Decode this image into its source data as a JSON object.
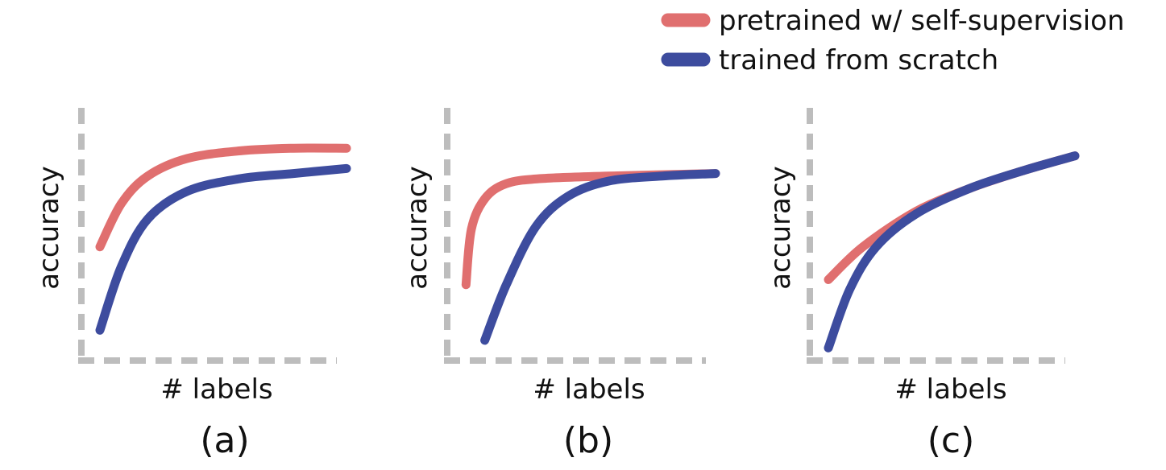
{
  "legend": {
    "items": [
      {
        "label": "pretrained w/ self-supervision",
        "color": "#E06F6F"
      },
      {
        "label": "trained from scratch",
        "color": "#3D4C9E"
      }
    ]
  },
  "axis_color": "#BDBDBD",
  "chart_data": [
    {
      "type": "line",
      "panel_label": "(a)",
      "xlabel": "# labels",
      "ylabel": "accuracy",
      "xlim": [
        0,
        1
      ],
      "ylim": [
        0,
        1
      ],
      "grid": false,
      "legend_position": "top-right",
      "series": [
        {
          "name": "pretrained w/ self-supervision",
          "color": "#E06F6F",
          "points": [
            [
              0.07,
              0.45
            ],
            [
              0.15,
              0.62
            ],
            [
              0.25,
              0.73
            ],
            [
              0.4,
              0.8
            ],
            [
              0.6,
              0.83
            ],
            [
              0.8,
              0.84
            ],
            [
              1.0,
              0.84
            ]
          ]
        },
        {
          "name": "trained from scratch",
          "color": "#3D4C9E",
          "points": [
            [
              0.07,
              0.12
            ],
            [
              0.15,
              0.37
            ],
            [
              0.25,
              0.56
            ],
            [
              0.4,
              0.67
            ],
            [
              0.6,
              0.72
            ],
            [
              0.8,
              0.74
            ],
            [
              1.0,
              0.76
            ]
          ]
        }
      ]
    },
    {
      "type": "line",
      "panel_label": "(b)",
      "xlabel": "# labels",
      "ylabel": "accuracy",
      "xlim": [
        0,
        1
      ],
      "ylim": [
        0,
        1
      ],
      "grid": false,
      "series": [
        {
          "name": "pretrained w/ self-supervision",
          "color": "#E06F6F",
          "points": [
            [
              0.07,
              0.3
            ],
            [
              0.09,
              0.52
            ],
            [
              0.14,
              0.64
            ],
            [
              0.22,
              0.7
            ],
            [
              0.35,
              0.72
            ],
            [
              0.6,
              0.73
            ],
            [
              1.0,
              0.74
            ]
          ]
        },
        {
          "name": "trained from scratch",
          "color": "#3D4C9E",
          "points": [
            [
              0.14,
              0.08
            ],
            [
              0.22,
              0.3
            ],
            [
              0.33,
              0.53
            ],
            [
              0.45,
              0.65
            ],
            [
              0.6,
              0.71
            ],
            [
              0.8,
              0.73
            ],
            [
              1.0,
              0.74
            ]
          ]
        }
      ]
    },
    {
      "type": "line",
      "panel_label": "(c)",
      "xlabel": "# labels",
      "ylabel": "accuracy",
      "xlim": [
        0,
        1
      ],
      "ylim": [
        0,
        1
      ],
      "grid": false,
      "series": [
        {
          "name": "pretrained w/ self-supervision",
          "color": "#E06F6F",
          "points": [
            [
              0.07,
              0.32
            ],
            [
              0.2,
              0.45
            ],
            [
              0.4,
              0.59
            ],
            [
              0.6,
              0.68
            ],
            [
              0.8,
              0.75
            ],
            [
              1.0,
              0.81
            ]
          ]
        },
        {
          "name": "trained from scratch",
          "color": "#3D4C9E",
          "points": [
            [
              0.07,
              0.05
            ],
            [
              0.15,
              0.28
            ],
            [
              0.25,
              0.45
            ],
            [
              0.4,
              0.58
            ],
            [
              0.6,
              0.68
            ],
            [
              0.8,
              0.75
            ],
            [
              1.0,
              0.81
            ]
          ]
        }
      ]
    }
  ]
}
